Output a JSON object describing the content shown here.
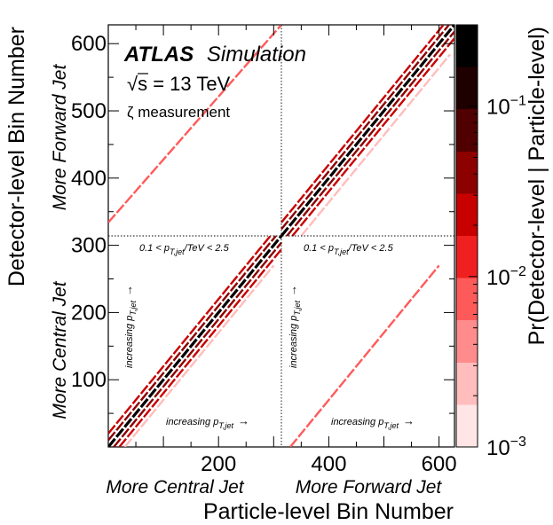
{
  "chart_data": {
    "type": "heatmap",
    "experiment": "ATLAS",
    "experiment_tag": "Simulation",
    "energy_sqrt": "s",
    "energy_rest": " = 13 TeV",
    "measurement_label": "ζ measurement",
    "xlabel": "Particle-level Bin Number",
    "ylabel": "Detector-level Bin Number",
    "xlim": [
      0,
      628
    ],
    "ylim": [
      0,
      628
    ],
    "x_ticks": [
      200,
      400,
      600
    ],
    "y_ticks": [
      100,
      200,
      300,
      400,
      500,
      600
    ],
    "x_region_labels": [
      "More Central Jet",
      "More Forward Jet"
    ],
    "y_region_labels": [
      "More Central Jet",
      "More Forward Jet"
    ],
    "region_boundary": 314,
    "pt_range_label_prefix": "0.1 < p",
    "pt_range_label_sub": "T,jet",
    "pt_range_label_suffix": "/TeV < 2.5",
    "increasing_label": "increasing p",
    "increasing_sub": "T,jet",
    "increasing_arrow": "→",
    "colorbar": {
      "label": "Pr(Detector-level | Particle-level)",
      "scale": "log",
      "range": [
        0.001,
        0.3
      ],
      "tick_mantissa": "10",
      "ticks": [
        {
          "value": 0.1,
          "exp": "−1"
        },
        {
          "value": 0.01,
          "exp": "−2"
        },
        {
          "value": 0.001,
          "exp": "−3"
        }
      ],
      "colors": [
        "#ffe5e5",
        "#ffbdbd",
        "#ff8c8c",
        "#ff5a5a",
        "#f02020",
        "#c80000",
        "#8c0000",
        "#500000",
        "#1e0000",
        "#000000"
      ]
    },
    "series": [
      {
        "x": [
          0,
          314
        ],
        "y": [
          0,
          314
        ],
        "level": 0.2
      },
      {
        "x": [
          0,
          304
        ],
        "y": [
          10,
          314
        ],
        "level": 0.05
      },
      {
        "x": [
          0,
          294
        ],
        "y": [
          20,
          314
        ],
        "level": 0.02
      },
      {
        "x": [
          10,
          314
        ],
        "y": [
          0,
          304
        ],
        "level": 0.05
      },
      {
        "x": [
          20,
          314
        ],
        "y": [
          0,
          294
        ],
        "level": 0.02
      },
      {
        "x": [
          30,
          300
        ],
        "y": [
          0,
          270
        ],
        "level": 0.003
      },
      {
        "x": [
          314,
          628
        ],
        "y": [
          314,
          628
        ],
        "level": 0.2
      },
      {
        "x": [
          314,
          618
        ],
        "y": [
          324,
          628
        ],
        "level": 0.05
      },
      {
        "x": [
          314,
          608
        ],
        "y": [
          334,
          628
        ],
        "level": 0.02
      },
      {
        "x": [
          324,
          628
        ],
        "y": [
          314,
          618
        ],
        "level": 0.05
      },
      {
        "x": [
          334,
          628
        ],
        "y": [
          314,
          608
        ],
        "level": 0.02
      },
      {
        "x": [
          350,
          620
        ],
        "y": [
          314,
          584
        ],
        "level": 0.003
      },
      {
        "x": [
          0,
          314
        ],
        "y": [
          334,
          628
        ],
        "level": 0.006
      },
      {
        "x": [
          330,
          600
        ],
        "y": [
          0,
          270
        ],
        "level": 0.006
      }
    ]
  }
}
